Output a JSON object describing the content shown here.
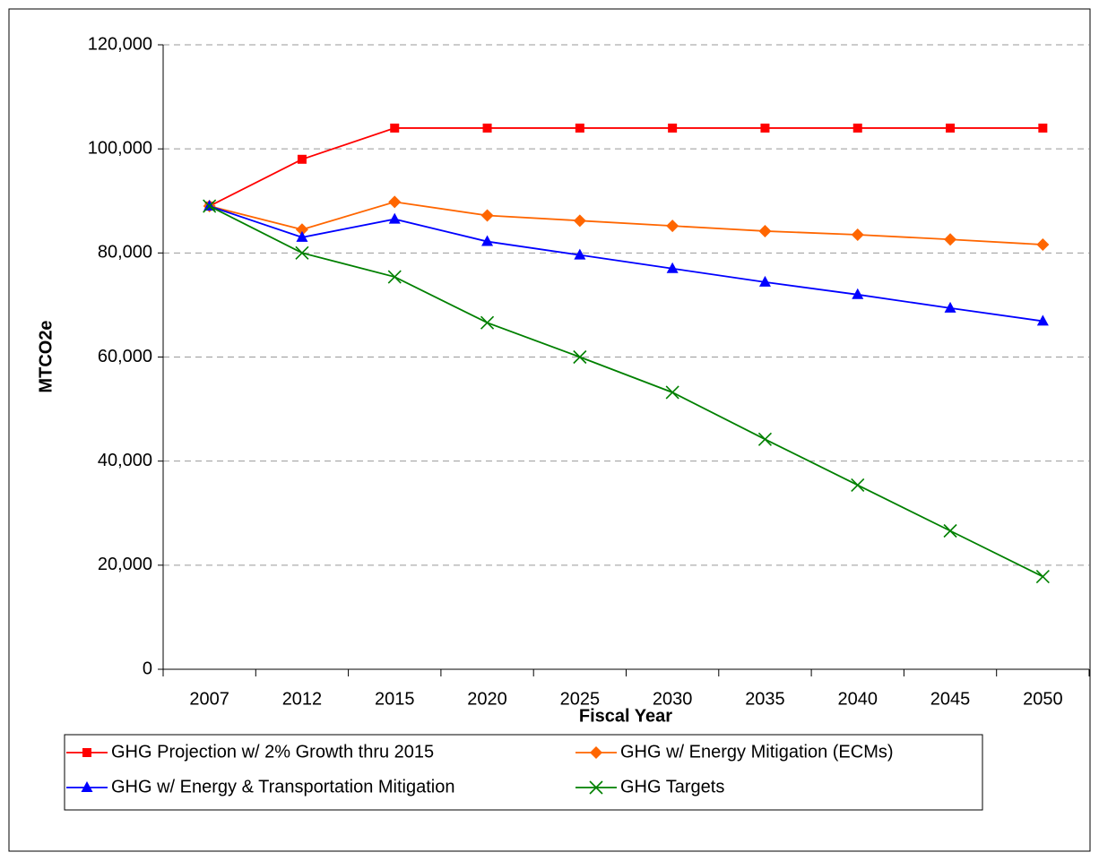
{
  "chart_data": {
    "type": "line",
    "xlabel": "Fiscal Year",
    "ylabel": "MTCO2e",
    "categories": [
      "2007",
      "2012",
      "2015",
      "2020",
      "2025",
      "2030",
      "2035",
      "2040",
      "2045",
      "2050"
    ],
    "series": [
      {
        "name": "GHG Projection w/ 2% Growth thru 2015",
        "color": "#ff0000",
        "marker": "square",
        "values": [
          89000,
          98000,
          104000,
          104000,
          104000,
          104000,
          104000,
          104000,
          104000,
          104000
        ]
      },
      {
        "name": "GHG w/ Energy Mitigation (ECMs)",
        "color": "#ff6600",
        "marker": "diamond",
        "values": [
          89000,
          84500,
          89800,
          87200,
          86200,
          85200,
          84200,
          83500,
          82600,
          81600
        ]
      },
      {
        "name": "GHG w/ Energy & Transportation Mitigation",
        "color": "#0000ff",
        "marker": "triangle",
        "values": [
          89000,
          83000,
          86500,
          82200,
          79600,
          77000,
          74400,
          72000,
          69400,
          66900
        ]
      },
      {
        "name": "GHG Targets",
        "color": "#008000",
        "marker": "x",
        "values": [
          89000,
          80000,
          75400,
          66600,
          60000,
          53200,
          44200,
          35400,
          26600,
          17800
        ]
      }
    ],
    "ylim": [
      0,
      120000
    ],
    "yticks": [
      0,
      {
        "value": 20000,
        "label": "20,000"
      },
      {
        "value": 40000,
        "label": "40,000"
      },
      {
        "value": 60000,
        "label": "60,000"
      },
      {
        "value": 80000,
        "label": "80,000"
      },
      {
        "value": 100000,
        "label": "100,000"
      },
      {
        "value": 120000,
        "label": "120,000"
      }
    ],
    "grid": true,
    "legend": "bottom"
  }
}
